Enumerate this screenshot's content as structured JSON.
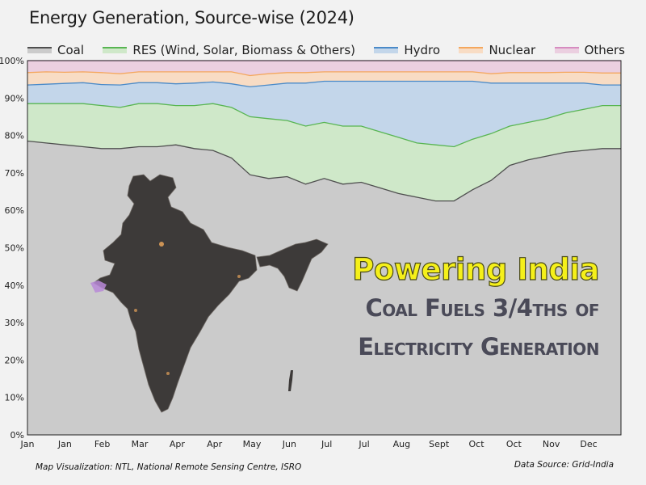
{
  "colors": {
    "coal": "#cbcbcb",
    "coal_line": "#4f4f4f",
    "res": "#cfe8c9",
    "res_line": "#58b552",
    "hydro": "#c3d6ea",
    "hydro_line": "#4a8ac8",
    "nuclear": "#f8dcc4",
    "nuclear_line": "#f4a75e",
    "others": "#ebcfe0",
    "others_line": "#d68cc0",
    "india_map": "#3d3a39",
    "headline_yellow": "#f5f01a",
    "headline_grey": "#4a4a58"
  },
  "headline": {
    "line1": "Powering India",
    "line2": "Coal Fuels 3/4ths of",
    "line3": "Electricity Generation"
  },
  "credits": {
    "left": "Map Visualization: NTL, National Remote Sensing Centre, ISRO",
    "right": "Data Source: Grid-India"
  },
  "map_icon": "india-map-icon",
  "chart_data": {
    "type": "area",
    "title": "Energy Generation, Source-wise (2024)",
    "xlabel": "",
    "ylabel": "",
    "stacked": true,
    "ylim": [
      0,
      100
    ],
    "yticks": [
      "0%",
      "10%",
      "20%",
      "30%",
      "40%",
      "50%",
      "60%",
      "70%",
      "80%",
      "90%",
      "100%"
    ],
    "xticks": [
      "Jan",
      "Jan",
      "Feb",
      "Mar",
      "Apr",
      "Apr",
      "May",
      "Jun",
      "Jul",
      "Jul",
      "Aug",
      "Sept",
      "Oct",
      "Oct",
      "Nov",
      "Dec"
    ],
    "legend": [
      "Coal",
      "RES (Wind, Solar, Biomass & Others)",
      "Hydro",
      "Nuclear",
      "Others"
    ],
    "legend_position": "top",
    "x": [
      0,
      0.5,
      1,
      1.5,
      2,
      2.5,
      3,
      3.5,
      4,
      4.5,
      5,
      5.5,
      6,
      6.5,
      7,
      7.5,
      8,
      8.5,
      9,
      9.5,
      10,
      10.5,
      11,
      11.5,
      12,
      12.5,
      13,
      13.5,
      14,
      14.5,
      15,
      15.5,
      16
    ],
    "series": [
      {
        "name": "Coal",
        "values": [
          78.5,
          78.0,
          77.5,
          77.0,
          76.5,
          76.5,
          77.0,
          77.0,
          77.5,
          76.5,
          76.0,
          74.0,
          69.5,
          68.5,
          69.0,
          67.0,
          68.5,
          67.0,
          67.5,
          66.0,
          64.5,
          63.5,
          62.5,
          62.5,
          65.5,
          68.0,
          72.0,
          73.5,
          74.5,
          75.5,
          76.0,
          76.5,
          76.5
        ]
      },
      {
        "name": "RES (Wind, Solar, Biomass & Others)",
        "values": [
          10.0,
          10.5,
          11.0,
          11.5,
          11.5,
          11.0,
          11.5,
          11.5,
          10.5,
          11.5,
          12.5,
          13.5,
          15.5,
          16.0,
          15.0,
          15.5,
          15.0,
          15.5,
          15.0,
          15.0,
          15.0,
          14.5,
          15.0,
          14.5,
          13.5,
          12.5,
          10.5,
          10.0,
          10.0,
          10.5,
          11.0,
          11.5,
          11.5
        ]
      },
      {
        "name": "Hydro",
        "values": [
          5.0,
          5.2,
          5.4,
          5.6,
          5.6,
          6.0,
          5.6,
          5.6,
          5.8,
          6.0,
          5.8,
          6.3,
          8.0,
          9.0,
          10.0,
          11.5,
          11.0,
          12.0,
          12.0,
          13.5,
          15.0,
          16.5,
          17.0,
          17.5,
          15.5,
          13.5,
          11.5,
          10.5,
          9.5,
          8.0,
          7.0,
          5.5,
          5.5
        ]
      },
      {
        "name": "Nuclear",
        "values": [
          3.3,
          3.3,
          3.0,
          2.9,
          3.2,
          3.0,
          2.9,
          2.9,
          3.2,
          3.0,
          2.7,
          3.2,
          3.0,
          3.0,
          2.8,
          2.8,
          2.5,
          2.5,
          2.5,
          2.5,
          2.5,
          2.5,
          2.5,
          2.5,
          2.5,
          2.5,
          2.8,
          2.8,
          2.8,
          2.9,
          2.9,
          3.2,
          3.2
        ]
      },
      {
        "name": "Others",
        "values": [
          3.2,
          3.0,
          3.1,
          3.0,
          3.2,
          3.5,
          3.0,
          3.0,
          3.0,
          3.0,
          3.0,
          3.0,
          4.0,
          3.5,
          3.2,
          3.2,
          3.0,
          3.0,
          3.0,
          3.0,
          3.0,
          3.0,
          3.0,
          3.0,
          3.0,
          3.5,
          3.2,
          3.2,
          3.2,
          3.1,
          3.1,
          3.3,
          3.3
        ]
      }
    ]
  }
}
